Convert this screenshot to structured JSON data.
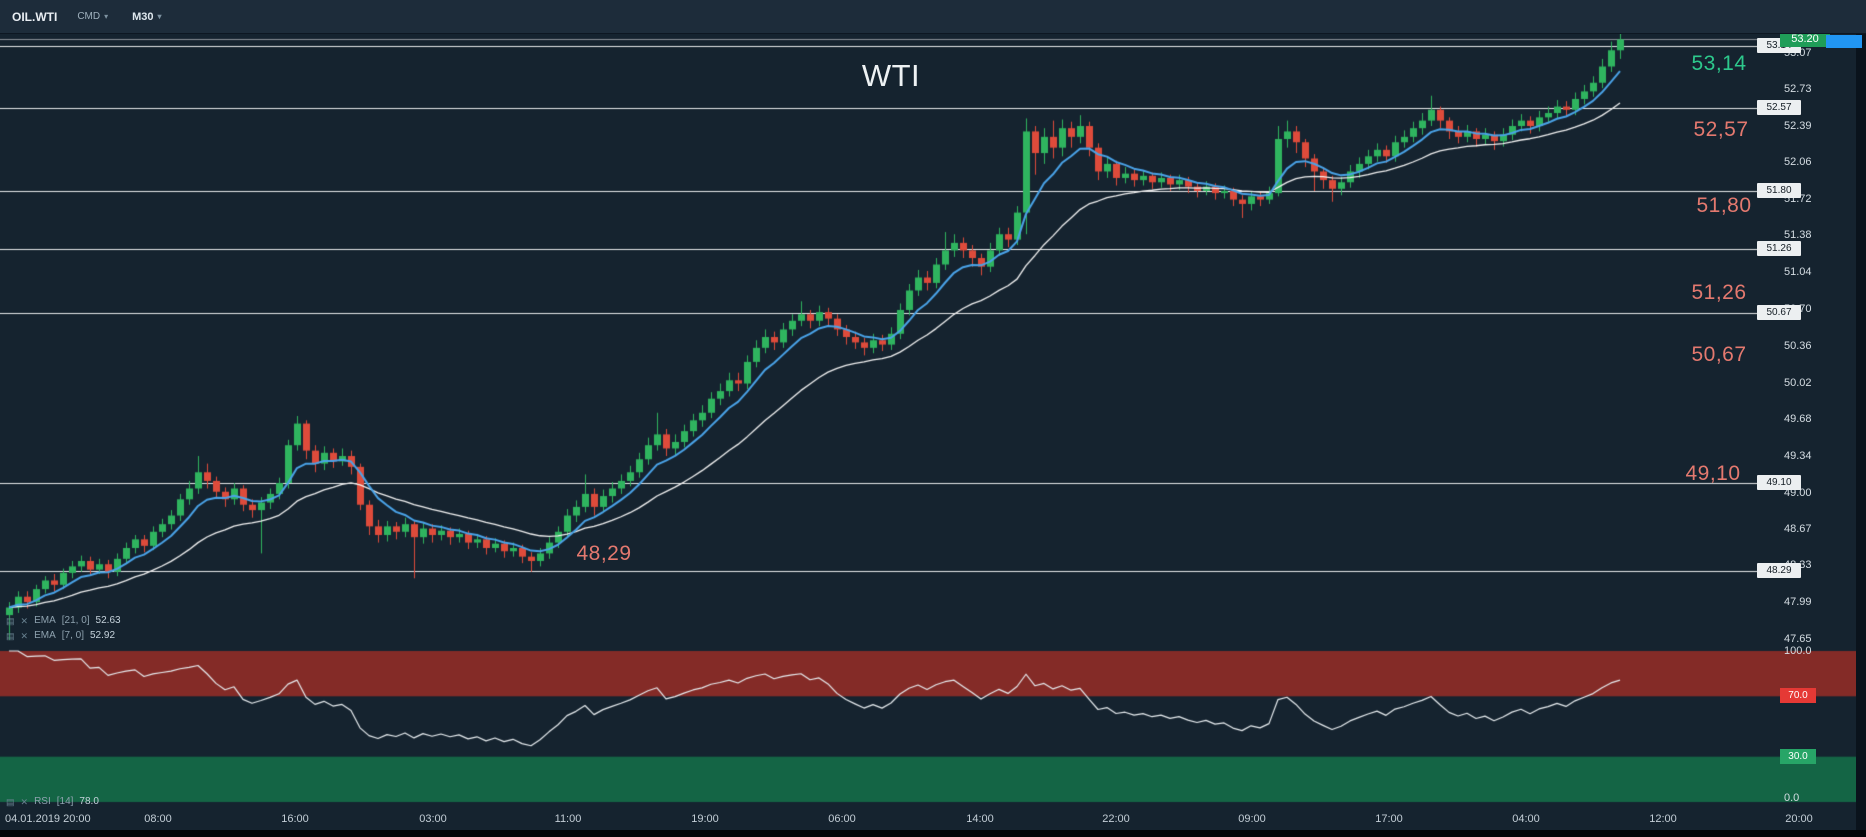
{
  "toolbar": {
    "symbol": "OIL.WTI",
    "provider": "CMD",
    "timeframe": "M30"
  },
  "chart_data": {
    "type": "candlestick",
    "title": "WTI",
    "symbol": "OIL.WTI",
    "timeframe": "M30",
    "ylim": [
      47.6,
      53.25
    ],
    "current_price": "53.20",
    "price_axis_ticks": [
      53.07,
      52.73,
      52.39,
      52.06,
      51.72,
      51.38,
      51.04,
      50.7,
      50.36,
      50.02,
      49.68,
      49.34,
      49.0,
      48.67,
      48.33,
      47.99,
      47.65
    ],
    "level_lines": [
      53.14,
      52.57,
      51.8,
      51.26,
      50.67,
      49.1,
      48.29
    ],
    "annotations": [
      {
        "text": "WTI",
        "color": "#eef2f4"
      },
      {
        "text": "53,14",
        "color": "#2dc98c"
      },
      {
        "text": "52,57",
        "color": "#e4796f"
      },
      {
        "text": "51,80",
        "color": "#e4796f"
      },
      {
        "text": "51,26",
        "color": "#e4796f"
      },
      {
        "text": "50,67",
        "color": "#e4796f"
      },
      {
        "text": "49,10",
        "color": "#e4796f"
      },
      {
        "text": "48,29",
        "color": "#e4796f"
      }
    ],
    "time_axis_ticks": [
      "04.01.2019  20:00",
      "08:00",
      "16:00",
      "03:00",
      "11:00",
      "19:00",
      "06:00",
      "14:00",
      "22:00",
      "09:00",
      "17:00",
      "04:00",
      "12:00",
      "20:00"
    ],
    "colors": {
      "up": "#2fb45f",
      "down": "#de4b3b",
      "ema_fast": "#4aa3e8",
      "ema_slow": "#f2f2f2",
      "background": "#15232f"
    },
    "indicators": {
      "ema_slow": {
        "name": "EMA",
        "params": "[21, 0]",
        "value": "52.63"
      },
      "ema_fast": {
        "name": "EMA",
        "params": "[7, 0]",
        "value": "52.92"
      },
      "rsi": {
        "name": "RSI",
        "params": "[14]",
        "value": "78.0",
        "period": 14,
        "overbought": 70,
        "oversold": 30,
        "axis_ticks": [
          "100.0",
          "70.0",
          "30.0",
          "0.0"
        ]
      }
    },
    "candles": [
      [
        47.88,
        48.0,
        47.65,
        47.95
      ],
      [
        47.95,
        48.1,
        47.9,
        48.05
      ],
      [
        48.05,
        48.1,
        47.94,
        48.0
      ],
      [
        48.0,
        48.16,
        47.96,
        48.12
      ],
      [
        48.12,
        48.24,
        48.08,
        48.2
      ],
      [
        48.2,
        48.26,
        48.1,
        48.16
      ],
      [
        48.16,
        48.31,
        48.12,
        48.27
      ],
      [
        48.27,
        48.38,
        48.22,
        48.33
      ],
      [
        48.33,
        48.43,
        48.28,
        48.38
      ],
      [
        48.38,
        48.42,
        48.25,
        48.3
      ],
      [
        48.3,
        48.4,
        48.26,
        48.35
      ],
      [
        48.35,
        48.39,
        48.22,
        48.28
      ],
      [
        48.28,
        48.45,
        48.24,
        48.4
      ],
      [
        48.4,
        48.55,
        48.36,
        48.5
      ],
      [
        48.5,
        48.62,
        48.45,
        48.58
      ],
      [
        48.58,
        48.62,
        48.46,
        48.52
      ],
      [
        48.52,
        48.7,
        48.48,
        48.65
      ],
      [
        48.65,
        48.77,
        48.6,
        48.72
      ],
      [
        48.72,
        48.85,
        48.67,
        48.8
      ],
      [
        48.8,
        49.0,
        48.75,
        48.95
      ],
      [
        48.95,
        49.12,
        48.9,
        49.05
      ],
      [
        49.05,
        49.35,
        49.0,
        49.2
      ],
      [
        49.2,
        49.28,
        49.05,
        49.12
      ],
      [
        49.12,
        49.16,
        48.96,
        49.02
      ],
      [
        49.02,
        49.06,
        48.88,
        48.95
      ],
      [
        48.95,
        49.1,
        48.9,
        49.05
      ],
      [
        49.05,
        49.08,
        48.84,
        48.9
      ],
      [
        48.9,
        48.95,
        48.78,
        48.85
      ],
      [
        48.85,
        48.97,
        48.45,
        48.92
      ],
      [
        48.92,
        49.05,
        48.86,
        49.0
      ],
      [
        49.0,
        49.15,
        48.95,
        49.1
      ],
      [
        49.1,
        49.5,
        49.05,
        49.45
      ],
      [
        49.45,
        49.72,
        49.4,
        49.65
      ],
      [
        49.65,
        49.68,
        49.32,
        49.4
      ],
      [
        49.4,
        49.45,
        49.2,
        49.28
      ],
      [
        49.28,
        49.44,
        49.22,
        49.38
      ],
      [
        49.38,
        49.42,
        49.24,
        49.3
      ],
      [
        49.3,
        49.42,
        49.26,
        49.35
      ],
      [
        49.35,
        49.4,
        49.18,
        49.25
      ],
      [
        49.25,
        49.28,
        48.85,
        48.9
      ],
      [
        48.9,
        48.94,
        48.62,
        48.7
      ],
      [
        48.7,
        48.76,
        48.55,
        48.62
      ],
      [
        48.62,
        48.75,
        48.56,
        48.7
      ],
      [
        48.7,
        48.74,
        48.58,
        48.65
      ],
      [
        48.65,
        48.78,
        48.6,
        48.72
      ],
      [
        48.72,
        48.75,
        48.22,
        48.6
      ],
      [
        48.6,
        48.73,
        48.54,
        48.68
      ],
      [
        48.68,
        48.72,
        48.55,
        48.62
      ],
      [
        48.62,
        48.71,
        48.57,
        48.66
      ],
      [
        48.66,
        48.69,
        48.53,
        48.6
      ],
      [
        48.6,
        48.68,
        48.55,
        48.63
      ],
      [
        48.63,
        48.66,
        48.49,
        48.55
      ],
      [
        48.55,
        48.63,
        48.5,
        48.58
      ],
      [
        48.58,
        48.61,
        48.44,
        48.5
      ],
      [
        48.5,
        48.59,
        48.46,
        48.54
      ],
      [
        48.54,
        48.57,
        48.41,
        48.47
      ],
      [
        48.47,
        48.55,
        48.42,
        48.5
      ],
      [
        48.5,
        48.53,
        48.36,
        48.42
      ],
      [
        48.42,
        48.46,
        48.28,
        48.38
      ],
      [
        48.38,
        48.5,
        48.33,
        48.45
      ],
      [
        48.45,
        48.6,
        48.4,
        48.55
      ],
      [
        48.55,
        48.7,
        48.5,
        48.65
      ],
      [
        48.65,
        48.86,
        48.6,
        48.8
      ],
      [
        48.8,
        48.94,
        48.74,
        48.88
      ],
      [
        48.88,
        49.18,
        48.83,
        49.0
      ],
      [
        49.0,
        49.05,
        48.8,
        48.88
      ],
      [
        48.88,
        49.04,
        48.83,
        48.98
      ],
      [
        48.98,
        49.11,
        48.92,
        49.05
      ],
      [
        49.05,
        49.18,
        49.0,
        49.12
      ],
      [
        49.12,
        49.26,
        49.07,
        49.2
      ],
      [
        49.2,
        49.38,
        49.15,
        49.32
      ],
      [
        49.32,
        49.52,
        49.27,
        49.45
      ],
      [
        49.45,
        49.75,
        49.4,
        49.55
      ],
      [
        49.55,
        49.6,
        49.35,
        49.42
      ],
      [
        49.42,
        49.55,
        49.36,
        49.48
      ],
      [
        49.48,
        49.64,
        49.43,
        49.58
      ],
      [
        49.58,
        49.74,
        49.53,
        49.68
      ],
      [
        49.68,
        49.82,
        49.62,
        49.75
      ],
      [
        49.75,
        49.94,
        49.7,
        49.88
      ],
      [
        49.88,
        50.02,
        49.82,
        49.95
      ],
      [
        49.95,
        50.12,
        49.9,
        50.05
      ],
      [
        50.05,
        50.12,
        49.95,
        50.02
      ],
      [
        50.02,
        50.28,
        49.97,
        50.22
      ],
      [
        50.22,
        50.42,
        50.17,
        50.35
      ],
      [
        50.35,
        50.52,
        50.3,
        50.45
      ],
      [
        50.45,
        50.5,
        50.33,
        50.4
      ],
      [
        50.4,
        50.58,
        50.35,
        50.52
      ],
      [
        50.52,
        50.66,
        50.46,
        50.6
      ],
      [
        50.6,
        50.78,
        50.55,
        50.66
      ],
      [
        50.66,
        50.7,
        50.53,
        50.6
      ],
      [
        50.6,
        50.74,
        50.55,
        50.68
      ],
      [
        50.68,
        50.72,
        50.55,
        50.62
      ],
      [
        50.62,
        50.66,
        50.46,
        50.52
      ],
      [
        50.52,
        50.56,
        50.38,
        50.45
      ],
      [
        50.45,
        50.5,
        50.34,
        50.4
      ],
      [
        50.4,
        50.44,
        50.28,
        50.35
      ],
      [
        50.35,
        50.48,
        50.3,
        50.42
      ],
      [
        50.42,
        50.47,
        50.32,
        50.38
      ],
      [
        50.38,
        50.54,
        50.33,
        50.48
      ],
      [
        50.48,
        50.76,
        50.43,
        50.7
      ],
      [
        50.7,
        50.94,
        50.65,
        50.88
      ],
      [
        50.88,
        51.07,
        50.83,
        51.0
      ],
      [
        51.0,
        51.06,
        50.88,
        50.95
      ],
      [
        50.95,
        51.18,
        50.9,
        51.12
      ],
      [
        51.12,
        51.42,
        51.07,
        51.25
      ],
      [
        51.25,
        51.4,
        51.19,
        51.32
      ],
      [
        51.32,
        51.37,
        51.18,
        51.25
      ],
      [
        51.25,
        51.3,
        51.1,
        51.18
      ],
      [
        51.18,
        51.22,
        51.02,
        51.1
      ],
      [
        51.1,
        51.32,
        51.05,
        51.25
      ],
      [
        51.25,
        51.46,
        51.2,
        51.4
      ],
      [
        51.4,
        51.46,
        51.28,
        51.35
      ],
      [
        51.35,
        51.66,
        51.3,
        51.6
      ],
      [
        51.6,
        52.47,
        51.4,
        52.35
      ],
      [
        52.35,
        52.4,
        51.95,
        52.15
      ],
      [
        52.15,
        52.38,
        52.05,
        52.3
      ],
      [
        52.3,
        52.45,
        52.1,
        52.2
      ],
      [
        52.2,
        52.46,
        52.12,
        52.38
      ],
      [
        52.38,
        52.44,
        52.2,
        52.3
      ],
      [
        52.3,
        52.5,
        52.24,
        52.4
      ],
      [
        52.4,
        52.44,
        52.12,
        52.2
      ],
      [
        52.2,
        52.24,
        51.9,
        51.98
      ],
      [
        51.98,
        52.12,
        51.92,
        52.05
      ],
      [
        52.05,
        52.08,
        51.85,
        51.92
      ],
      [
        51.92,
        52.02,
        51.87,
        51.96
      ],
      [
        51.96,
        52.0,
        51.84,
        51.9
      ],
      [
        51.9,
        51.99,
        51.85,
        51.94
      ],
      [
        51.94,
        51.97,
        51.82,
        51.88
      ],
      [
        51.88,
        51.97,
        51.83,
        51.92
      ],
      [
        51.92,
        51.95,
        51.8,
        51.86
      ],
      [
        51.86,
        51.95,
        51.81,
        51.9
      ],
      [
        51.9,
        51.93,
        51.78,
        51.84
      ],
      [
        51.84,
        51.88,
        51.74,
        51.8
      ],
      [
        51.8,
        51.89,
        51.76,
        51.84
      ],
      [
        51.84,
        51.87,
        51.72,
        51.78
      ],
      [
        51.78,
        51.85,
        51.73,
        51.8
      ],
      [
        51.8,
        51.83,
        51.66,
        51.72
      ],
      [
        51.72,
        51.76,
        51.55,
        51.68
      ],
      [
        51.68,
        51.8,
        51.62,
        51.75
      ],
      [
        51.75,
        51.79,
        51.66,
        51.72
      ],
      [
        51.72,
        51.84,
        51.68,
        51.78
      ],
      [
        51.78,
        52.4,
        51.75,
        52.28
      ],
      [
        52.28,
        52.45,
        52.2,
        52.35
      ],
      [
        52.35,
        52.4,
        52.15,
        52.25
      ],
      [
        52.25,
        52.28,
        52.02,
        52.1
      ],
      [
        52.1,
        52.14,
        51.8,
        51.98
      ],
      [
        51.98,
        52.02,
        51.82,
        51.9
      ],
      [
        51.9,
        51.94,
        51.7,
        51.82
      ],
      [
        51.82,
        51.93,
        51.76,
        51.88
      ],
      [
        51.88,
        52.04,
        51.83,
        51.98
      ],
      [
        51.98,
        52.11,
        51.92,
        52.05
      ],
      [
        52.05,
        52.18,
        52.0,
        52.12
      ],
      [
        52.12,
        52.24,
        52.07,
        52.18
      ],
      [
        52.18,
        52.22,
        52.06,
        52.12
      ],
      [
        52.12,
        52.31,
        52.07,
        52.25
      ],
      [
        52.25,
        52.36,
        52.2,
        52.3
      ],
      [
        52.3,
        52.44,
        52.25,
        52.38
      ],
      [
        52.38,
        52.52,
        52.32,
        52.45
      ],
      [
        52.45,
        52.68,
        52.4,
        52.55
      ],
      [
        52.55,
        52.58,
        52.38,
        52.45
      ],
      [
        52.45,
        52.48,
        52.28,
        52.35
      ],
      [
        52.35,
        52.4,
        52.24,
        52.3
      ],
      [
        52.3,
        52.41,
        52.25,
        52.35
      ],
      [
        52.35,
        52.38,
        52.21,
        52.28
      ],
      [
        52.28,
        52.38,
        52.23,
        52.32
      ],
      [
        52.32,
        52.35,
        52.18,
        52.26
      ],
      [
        52.26,
        52.38,
        52.21,
        52.32
      ],
      [
        52.32,
        52.46,
        52.27,
        52.4
      ],
      [
        52.4,
        52.51,
        52.35,
        52.45
      ],
      [
        52.45,
        52.49,
        52.33,
        52.4
      ],
      [
        52.4,
        52.54,
        52.35,
        52.48
      ],
      [
        52.48,
        52.58,
        52.43,
        52.52
      ],
      [
        52.52,
        52.64,
        52.47,
        52.58
      ],
      [
        52.58,
        52.63,
        52.49,
        52.55
      ],
      [
        52.55,
        52.71,
        52.5,
        52.65
      ],
      [
        52.65,
        52.78,
        52.6,
        52.72
      ],
      [
        52.72,
        52.86,
        52.67,
        52.8
      ],
      [
        52.8,
        53.02,
        52.75,
        52.95
      ],
      [
        52.95,
        53.18,
        52.9,
        53.1
      ],
      [
        53.1,
        53.3,
        53.02,
        53.2
      ]
    ]
  }
}
